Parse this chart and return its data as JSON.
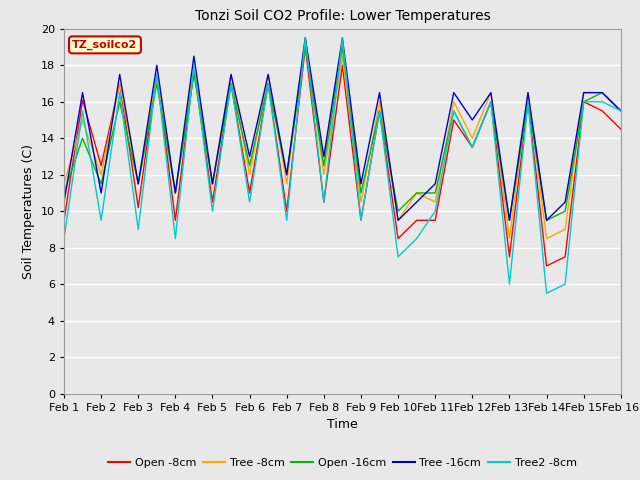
{
  "title": "Tonzi Soil CO2 Profile: Lower Temperatures",
  "xlabel": "Time",
  "ylabel": "Soil Temperatures (C)",
  "xlim": [
    0,
    15
  ],
  "ylim": [
    0,
    20
  ],
  "yticks": [
    0,
    2,
    4,
    6,
    8,
    10,
    12,
    14,
    16,
    18,
    20
  ],
  "xtick_labels": [
    "Feb 1",
    "Feb 2",
    "Feb 3",
    "Feb 4",
    "Feb 5",
    "Feb 6",
    "Feb 7",
    "Feb 8",
    "Feb 9",
    "Feb 10",
    "Feb 11",
    "Feb 12",
    "Feb 13",
    "Feb 14",
    "Feb 15",
    "Feb 16"
  ],
  "plot_bg": "#e8e8e8",
  "fig_bg": "#e8e8e8",
  "grid_color": "#ffffff",
  "legend_label": "TZ_soilco2",
  "legend_facecolor": "#ffffcc",
  "legend_edgecolor": "#cc0000",
  "title_fontsize": 10,
  "axis_label_fontsize": 9,
  "tick_fontsize": 8,
  "series": {
    "Open -8cm": {
      "color": "#ff0000",
      "lw": 1.0
    },
    "Tree -8cm": {
      "color": "#ffa500",
      "lw": 1.0
    },
    "Open -16cm": {
      "color": "#00bb00",
      "lw": 1.0
    },
    "Tree -16cm": {
      "color": "#0000cc",
      "lw": 1.0
    },
    "Tree2 -8cm": {
      "color": "#00cccc",
      "lw": 1.0
    }
  },
  "t": [
    0.0,
    0.5,
    1.0,
    1.5,
    2.0,
    2.5,
    3.0,
    3.5,
    4.0,
    4.5,
    5.0,
    5.5,
    6.0,
    6.5,
    7.0,
    7.5,
    8.0,
    8.5,
    9.0,
    9.5,
    10.0,
    10.5,
    11.0,
    11.5,
    12.0,
    12.5,
    13.0,
    13.5,
    14.0,
    14.5,
    15.0
  ],
  "open8": [
    9.5,
    16.1,
    12.5,
    17.0,
    10.2,
    17.5,
    9.5,
    17.8,
    10.5,
    17.0,
    11.0,
    17.0,
    10.0,
    19.0,
    10.5,
    18.0,
    9.5,
    15.5,
    8.5,
    9.5,
    9.5,
    15.0,
    13.5,
    16.0,
    7.5,
    16.0,
    7.0,
    7.5,
    16.0,
    15.5,
    14.5
  ],
  "tree8": [
    11.5,
    15.0,
    12.0,
    17.0,
    11.5,
    17.5,
    11.0,
    18.0,
    11.5,
    17.5,
    12.0,
    17.5,
    11.5,
    19.5,
    12.0,
    18.5,
    10.5,
    16.0,
    9.5,
    11.0,
    10.5,
    16.0,
    14.0,
    16.5,
    8.5,
    16.5,
    8.5,
    9.0,
    16.5,
    16.5,
    15.5
  ],
  "open16": [
    11.0,
    14.0,
    11.5,
    16.0,
    11.5,
    17.0,
    11.0,
    17.5,
    11.5,
    17.0,
    12.5,
    17.0,
    12.0,
    19.0,
    12.5,
    19.0,
    11.0,
    15.5,
    10.0,
    11.0,
    11.0,
    15.5,
    13.5,
    16.0,
    9.5,
    16.0,
    9.5,
    10.0,
    16.0,
    16.5,
    15.5
  ],
  "tree16": [
    10.5,
    16.5,
    11.0,
    17.5,
    11.5,
    18.0,
    11.0,
    18.5,
    11.5,
    17.5,
    13.0,
    17.5,
    12.0,
    19.5,
    13.0,
    19.5,
    11.5,
    16.5,
    9.5,
    10.5,
    11.5,
    16.5,
    15.0,
    16.5,
    9.5,
    16.5,
    9.5,
    10.5,
    16.5,
    16.5,
    15.5
  ],
  "tree2_8": [
    8.5,
    15.5,
    9.5,
    16.5,
    9.0,
    17.5,
    8.5,
    18.0,
    10.0,
    17.0,
    10.5,
    17.0,
    9.5,
    19.5,
    10.5,
    19.5,
    9.5,
    15.5,
    7.5,
    8.5,
    10.0,
    15.5,
    13.5,
    16.0,
    6.0,
    16.0,
    5.5,
    6.0,
    16.0,
    16.0,
    15.5
  ]
}
